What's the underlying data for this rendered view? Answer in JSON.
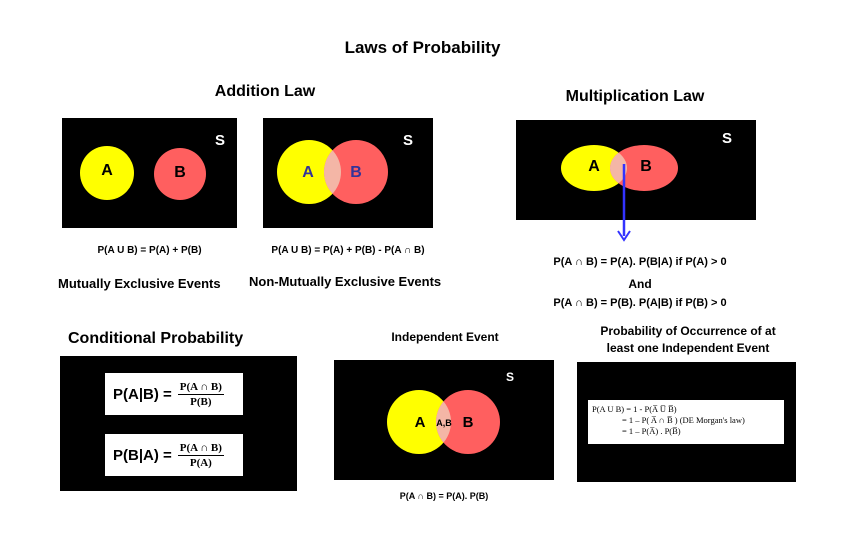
{
  "main_title": "Laws of Probability",
  "addition": {
    "heading": "Addition Law",
    "exclusive": {
      "space_label": "S",
      "set_a": "A",
      "set_b": "B",
      "formula": "P(A U B) = P(A) + P(B)",
      "caption": "Mutually Exclusive Events"
    },
    "non_exclusive": {
      "space_label": "S",
      "set_a": "A",
      "set_b": "B",
      "formula": "P(A U B) = P(A) + P(B) - P(A ∩ B)",
      "caption": "Non-Mutually Exclusive Events"
    }
  },
  "multiplication": {
    "heading": "Multiplication Law",
    "space_label": "S",
    "set_a": "A",
    "set_b": "B",
    "formula_1": "P(A ∩ B) = P(A). P(B|A) if P(A) > 0",
    "connector": "And",
    "formula_2": "P(A ∩ B) = P(B). P(A|B) if P(B) > 0"
  },
  "conditional": {
    "heading": "Conditional Probability",
    "f1_lhs": "P(A|B) =",
    "f1_num": "P(A ∩ B)",
    "f1_den": "P(B)",
    "f2_lhs": "P(B|A) =",
    "f2_num": "P(A ∩ B)",
    "f2_den": "P(A)"
  },
  "independent": {
    "heading": "Independent Event",
    "space_label": "S",
    "set_a": "A",
    "set_b": "B",
    "intersection": "A,B",
    "formula": "P(A ∩ B) = P(A). P(B)"
  },
  "at_least_one": {
    "heading_1": "Probability of Occurrence of at",
    "heading_2": "least one Independent Event",
    "line_1": "P(A U B) = 1 - P(A̅ U̅ B̅)",
    "line_2": "= 1 – P( A̅ ∩ B̅ )  (DE Morgan's law)",
    "line_3": "= 1 – P(A̅) . P(B̅)"
  },
  "colors": {
    "yellow": "#ffff00",
    "red": "#ff5f5f",
    "overlap": "#f4b6a6",
    "arrow": "#3333ff",
    "panel": "#000000"
  }
}
